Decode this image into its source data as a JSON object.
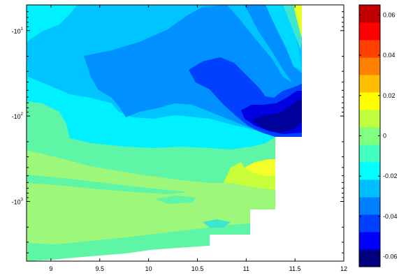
{
  "chart_data": {
    "type": "heatmap",
    "subtype": "filled-contour",
    "title": "",
    "xlabel": "",
    "ylabel": "",
    "x_axis": {
      "range": [
        8.75,
        12
      ],
      "ticks": [
        9,
        9.5,
        10,
        10.5,
        11,
        11.5,
        12
      ],
      "tick_labels": [
        "9",
        "9.5",
        "10",
        "10.5",
        "11",
        "11.5",
        "12"
      ]
    },
    "y_axis": {
      "scale": "log",
      "direction": "downward",
      "range": [
        -5,
        -5000
      ],
      "ticks": [
        -10,
        -100,
        -1000
      ],
      "tick_labels": [
        {
          "base": "-10",
          "exp": "1"
        },
        {
          "base": "-10",
          "exp": "2"
        },
        {
          "base": "-10",
          "exp": "3"
        }
      ]
    },
    "colorbar": {
      "colormap": "jet",
      "range": [
        -0.065,
        0.065
      ],
      "ticks": [
        -0.06,
        -0.04,
        -0.02,
        0,
        0.02,
        0.04,
        0.06
      ],
      "tick_labels": [
        "-0.06",
        "-0.04",
        "-0.02",
        "0",
        "0.02",
        "0.04",
        "0.06"
      ],
      "colors": [
        "#00007f",
        "#0000ff",
        "#0040ff",
        "#0080ff",
        "#00bfff",
        "#00ffff",
        "#40ffbf",
        "#80ff80",
        "#bfff40",
        "#ffff00",
        "#ffbf00",
        "#ff8000",
        "#ff4000",
        "#ff0000",
        "#bf0000"
      ]
    },
    "regions": [
      {
        "field": "background field",
        "value": 0.003
      },
      {
        "field": "upper band",
        "value": -0.015
      },
      {
        "field": "shallow core",
        "value": -0.028
      },
      {
        "field": "minimum near x=11.3",
        "value": -0.062
      },
      {
        "field": "high near x=11.1 mid-depth",
        "value": 0.022
      },
      {
        "field": "surface high near x=11.5",
        "value": 0.018
      }
    ]
  }
}
